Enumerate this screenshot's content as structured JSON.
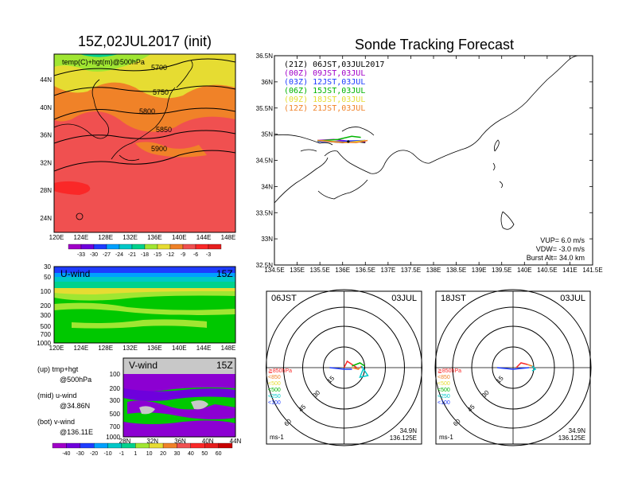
{
  "chart_data": [
    {
      "type": "heatmap",
      "title": "15Z,02JUL2017 (init)",
      "annotation": "temp(C)+hgt(m)@500hPa",
      "x_ticks": [
        "120E",
        "124E",
        "128E",
        "132E",
        "136E",
        "140E",
        "144E",
        "148E"
      ],
      "y_ticks": [
        "24N",
        "28N",
        "32N",
        "36N",
        "40N",
        "44N"
      ],
      "contours": [
        "5700",
        "5750",
        "5800",
        "5850",
        "5900"
      ],
      "colorbar": {
        "labels": [
          "-33",
          "-30",
          "-27",
          "-24",
          "-21",
          "-18",
          "-15",
          "-12",
          "-9",
          "-6",
          "-3"
        ],
        "colors": [
          "#a000c8",
          "#6e00dc",
          "#1e3cff",
          "#00a0ff",
          "#00c8c8",
          "#00d28c",
          "#a0e632",
          "#e6dc32",
          "#f08228",
          "#f05050",
          "#fa2828",
          "#e61e1e"
        ]
      }
    },
    {
      "type": "heatmap",
      "title": "U-wind",
      "time_label": "15Z",
      "y_ticks": [
        "30",
        "50",
        "100",
        "200",
        "300",
        "500",
        "700",
        "1000"
      ],
      "x_ticks": [
        "120E",
        "124E",
        "128E",
        "132E",
        "136E",
        "140E",
        "144E",
        "148E"
      ]
    },
    {
      "type": "heatmap",
      "title": "V-wind",
      "time_label": "15Z",
      "y_ticks": [
        "100",
        "200",
        "300",
        "500",
        "700",
        "1000"
      ],
      "x_ticks": [
        "28N",
        "32N",
        "36N",
        "40N",
        "44N"
      ],
      "colorbar": {
        "labels": [
          "-40",
          "-30",
          "-20",
          "-10",
          "-1",
          "1",
          "10",
          "20",
          "30",
          "40",
          "50",
          "60"
        ],
        "colors": [
          "#a000c8",
          "#6e00dc",
          "#1e3cff",
          "#00a0ff",
          "#00c8c8",
          "#00d28c",
          "#a0e632",
          "#e6dc32",
          "#f08228",
          "#f05050",
          "#fa2828",
          "#e61e1e",
          "#c80000"
        ]
      }
    },
    {
      "type": "line",
      "title": "Sonde Tracking Forecast",
      "x_ticks": [
        "134.5E",
        "135E",
        "135.5E",
        "136E",
        "136.5E",
        "137E",
        "137.5E",
        "138E",
        "138.5E",
        "139E",
        "139.5E",
        "140E",
        "140.5E",
        "141E",
        "141.5E"
      ],
      "y_ticks": [
        "32.5N",
        "33N",
        "33.5N",
        "34N",
        "34.5N",
        "35N",
        "35.5N",
        "36N",
        "36.5N"
      ],
      "xlim": [
        134.5,
        141.5
      ],
      "ylim": [
        32.5,
        36.5
      ],
      "series": [
        {
          "name": "(21Z)  06JST,03JUL2017",
          "color": "#000000",
          "x": [
            135.45,
            135.7,
            136.0,
            136.3,
            136.5
          ],
          "y": [
            34.88,
            34.86,
            34.84,
            34.86,
            34.84
          ]
        },
        {
          "name": "(00Z)  09JST,03JUL",
          "color": "#a000c8",
          "x": [
            135.45,
            135.8,
            136.2,
            136.5
          ],
          "y": [
            34.88,
            34.9,
            34.86,
            34.86
          ]
        },
        {
          "name": "(03Z)  12JST,03JUL",
          "color": "#1e3cff",
          "x": [
            135.45,
            135.8,
            136.15,
            136.5
          ],
          "y": [
            34.86,
            34.86,
            34.87,
            34.88
          ]
        },
        {
          "name": "(06Z)  15JST,03JUL",
          "color": "#00b400",
          "x": [
            135.45,
            135.9,
            136.2,
            136.4
          ],
          "y": [
            34.87,
            34.9,
            34.96,
            34.94
          ]
        },
        {
          "name": "(09Z)  18JST,03JUL",
          "color": "#e6dc32",
          "x": [
            135.45,
            135.8,
            136.1,
            136.5
          ],
          "y": [
            34.88,
            34.86,
            34.84,
            34.88
          ]
        },
        {
          "name": "(12Z)  21JST,03JUL",
          "color": "#f08228",
          "x": [
            135.45,
            135.85,
            136.3,
            136.55
          ],
          "y": [
            34.88,
            34.85,
            34.84,
            34.88
          ]
        }
      ],
      "params": [
        "VUP=  6.0 m/s",
        "VDW= -3.0 m/s",
        "Burst Alt= 34.0 km"
      ]
    },
    {
      "type": "line",
      "title": "06JST",
      "date_label": "03JUL",
      "ring_labels": [
        "15",
        "30",
        "45",
        "60"
      ],
      "legend": [
        {
          "label": "≧850hPa",
          "color": "#fa2828"
        },
        {
          "label": "<850",
          "color": "#f08228"
        },
        {
          "label": "<500",
          "color": "#e6dc32"
        },
        {
          "label": "<500",
          "color": "#00b400"
        },
        {
          "label": "<250",
          "color": "#00c8c8"
        },
        {
          "label": "<100",
          "color": "#1e3cff"
        }
      ],
      "unit": "ms-1",
      "lat_label": "34.9N",
      "lon_label": "136.125E"
    },
    {
      "type": "line",
      "title": "18JST",
      "date_label": "03JUL",
      "ring_labels": [
        "15",
        "30",
        "45",
        "60"
      ],
      "legend": [
        {
          "label": "≧850hPa",
          "color": "#fa2828"
        },
        {
          "label": "<850",
          "color": "#f08228"
        },
        {
          "label": "<500",
          "color": "#e6dc32"
        },
        {
          "label": "<500",
          "color": "#00b400"
        },
        {
          "label": "<250",
          "color": "#00c8c8"
        },
        {
          "label": "<100",
          "color": "#1e3cff"
        }
      ],
      "unit": "ms-1",
      "lat_label": "34.9N",
      "lon_label": "136.125E"
    }
  ],
  "text": {
    "up": "(up) tmp+hgt",
    "up2": "@500hPa",
    "mid": "(mid) u-wind",
    "mid2": "@34.86N",
    "bot": "(bot) v-wind",
    "bot2": "@136.11E"
  }
}
